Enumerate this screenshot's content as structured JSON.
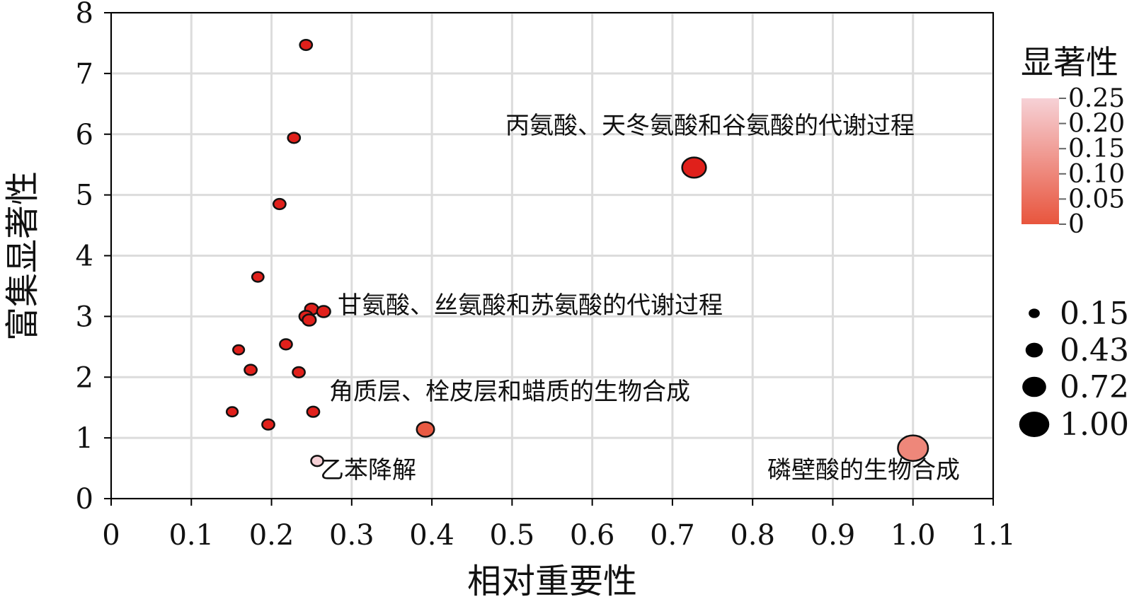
{
  "chart_data": {
    "type": "scatter",
    "xlabel": "相对重要性",
    "ylabel": "富集显著性",
    "xlim": [
      0,
      1.1
    ],
    "ylim": [
      0,
      8
    ],
    "xticks": [
      "0",
      "0.1",
      "0.2",
      "0.3",
      "0.4",
      "0.5",
      "0.6",
      "0.7",
      "0.8",
      "0.9",
      "1.0",
      "1.1"
    ],
    "yticks": [
      "0",
      "1",
      "2",
      "3",
      "4",
      "5",
      "6",
      "7",
      "8"
    ],
    "grid": true,
    "points": [
      {
        "x": 0.243,
        "y": 7.47,
        "size": 0.2,
        "p": 0.0
      },
      {
        "x": 0.228,
        "y": 5.94,
        "size": 0.2,
        "p": 0.0
      },
      {
        "x": 0.727,
        "y": 5.45,
        "size": 0.72,
        "p": 0.0,
        "label": "丙氨酸、天冬氨酸和谷氨酸的代谢过程"
      },
      {
        "x": 0.21,
        "y": 4.85,
        "size": 0.2,
        "p": 0.0
      },
      {
        "x": 0.183,
        "y": 3.65,
        "size": 0.17,
        "p": 0.0
      },
      {
        "x": 0.25,
        "y": 3.12,
        "size": 0.25,
        "p": 0.0
      },
      {
        "x": 0.265,
        "y": 3.08,
        "size": 0.25,
        "p": 0.0
      },
      {
        "x": 0.243,
        "y": 3.0,
        "size": 0.25,
        "p": 0.0
      },
      {
        "x": 0.247,
        "y": 2.94,
        "size": 0.25,
        "p": 0.0,
        "label": "甘氨酸、丝氨酸和苏氨酸的代谢过程"
      },
      {
        "x": 0.218,
        "y": 2.54,
        "size": 0.2,
        "p": 0.0
      },
      {
        "x": 0.159,
        "y": 2.45,
        "size": 0.15,
        "p": 0.0
      },
      {
        "x": 0.174,
        "y": 2.12,
        "size": 0.2,
        "p": 0.0
      },
      {
        "x": 0.234,
        "y": 2.08,
        "size": 0.2,
        "p": 0.0
      },
      {
        "x": 0.151,
        "y": 1.43,
        "size": 0.15,
        "p": 0.0
      },
      {
        "x": 0.252,
        "y": 1.43,
        "size": 0.2,
        "p": 0.0
      },
      {
        "x": 0.196,
        "y": 1.22,
        "size": 0.2,
        "p": 0.0
      },
      {
        "x": 0.392,
        "y": 1.14,
        "size": 0.43,
        "p": 0.01,
        "label": "角质层、栓皮层和蜡质的生物合成"
      },
      {
        "x": 0.257,
        "y": 0.62,
        "size": 0.2,
        "p": 0.25,
        "label": "乙苯降解"
      },
      {
        "x": 1.0,
        "y": 0.83,
        "size": 1.0,
        "p": 0.1,
        "label": "磷壁酸的生物合成"
      }
    ],
    "color_legend": {
      "title": "显著性",
      "ticks": [
        "0.25",
        "0.20",
        "0.15",
        "0.10",
        "0.05",
        "0"
      ],
      "range": [
        0,
        0.25
      ],
      "color_low": "#e8553d",
      "color_high": "#f6d1d6"
    },
    "size_legend": {
      "values": [
        0.15,
        0.43,
        0.72,
        1.0
      ],
      "labels": [
        "0.15",
        "0.43",
        "0.72",
        "1.00"
      ]
    }
  }
}
